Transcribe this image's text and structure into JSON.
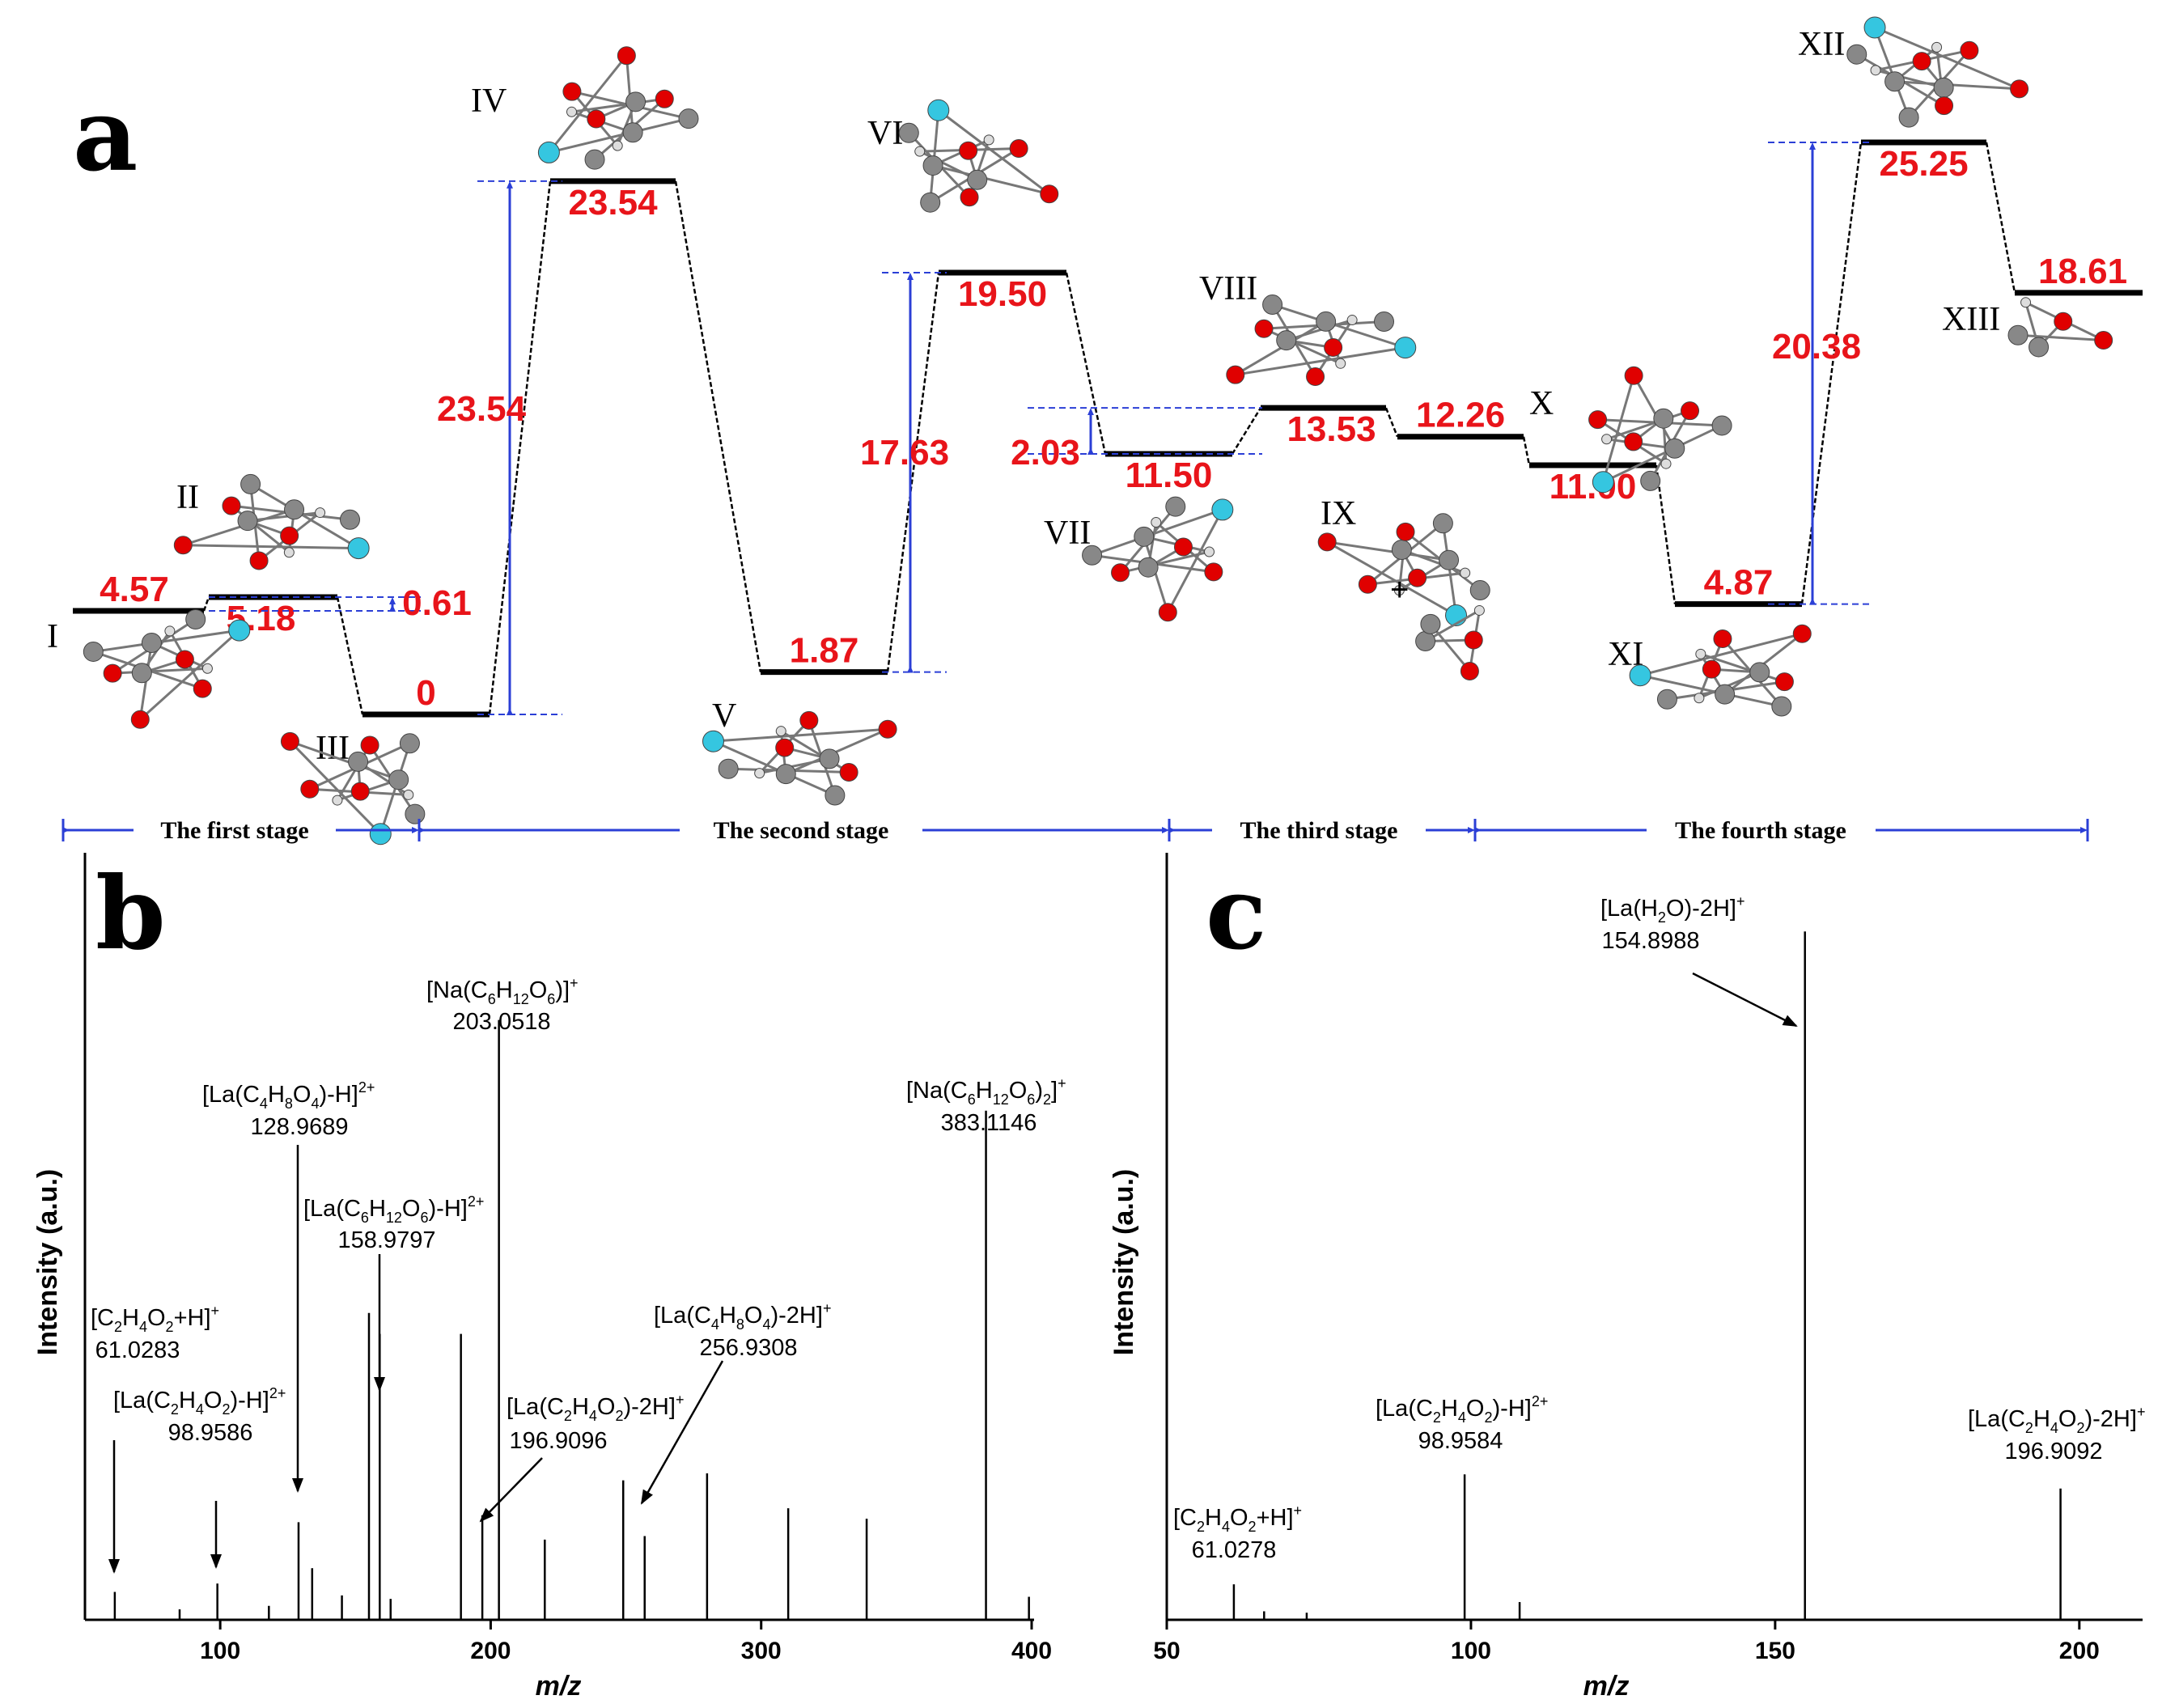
{
  "panels": {
    "a": "a",
    "b": "b",
    "c": "c"
  },
  "energy_profile": {
    "type": "energy-diagram",
    "unit": "kcal/mol",
    "levels": [
      {
        "id": "I",
        "label": "I",
        "energy": 4.57,
        "display": "4.57"
      },
      {
        "id": "II",
        "label": "II",
        "energy": 5.18,
        "display": "5.18"
      },
      {
        "id": "III",
        "label": "III",
        "energy": 0,
        "display": "0"
      },
      {
        "id": "IV",
        "label": "IV",
        "energy": 23.54,
        "display": "23.54"
      },
      {
        "id": "V",
        "label": "V",
        "energy": 1.87,
        "display": "1.87"
      },
      {
        "id": "VI",
        "label": "VI",
        "energy": 19.5,
        "display": "19.50"
      },
      {
        "id": "VII",
        "label": "VII",
        "energy": 11.5,
        "display": "11.50"
      },
      {
        "id": "VIII",
        "label": "VIII",
        "energy": 13.53,
        "display": "13.53"
      },
      {
        "id": "IX",
        "label": "IX",
        "energy": 12.26,
        "display": "12.26"
      },
      {
        "id": "X",
        "label": "X",
        "energy": 11.0,
        "display": "11.00"
      },
      {
        "id": "XI",
        "label": "XI",
        "energy": 4.87,
        "display": "4.87"
      },
      {
        "id": "XII",
        "label": "XII",
        "energy": 25.25,
        "display": "25.25"
      },
      {
        "id": "XIII",
        "label": "XIII",
        "energy": 18.61,
        "display": "18.61"
      }
    ],
    "barriers": [
      {
        "value": 0.61,
        "display": "0.61"
      },
      {
        "value": 23.54,
        "display": "23.54"
      },
      {
        "value": 17.63,
        "display": "17.63"
      },
      {
        "value": 2.03,
        "display": "2.03"
      },
      {
        "value": 20.38,
        "display": "20.38"
      }
    ],
    "plus_sign": "+",
    "stages": [
      "The first stage",
      "The second stage",
      "The third stage",
      "The fourth stage"
    ]
  },
  "chart_data": [
    {
      "type": "bar",
      "panel": "b",
      "title": "",
      "xlabel": "m/z",
      "ylabel": "Intensity (a.u.)",
      "xlim": [
        50,
        400
      ],
      "ylim": [
        0,
        100
      ],
      "xticks": [
        100,
        200,
        300,
        400
      ],
      "peaks": [
        {
          "x": 61.0283,
          "y": 4
        },
        {
          "x": 85,
          "y": 1.5
        },
        {
          "x": 98.9586,
          "y": 5.2
        },
        {
          "x": 118,
          "y": 2
        },
        {
          "x": 128.9689,
          "y": 14
        },
        {
          "x": 134,
          "y": 7.4
        },
        {
          "x": 145,
          "y": 3.5
        },
        {
          "x": 155,
          "y": 44
        },
        {
          "x": 158.9797,
          "y": 41
        },
        {
          "x": 163,
          "y": 3
        },
        {
          "x": 189,
          "y": 41
        },
        {
          "x": 196.9096,
          "y": 15
        },
        {
          "x": 203.0518,
          "y": 86
        },
        {
          "x": 220,
          "y": 11.5
        },
        {
          "x": 249,
          "y": 20
        },
        {
          "x": 256.9308,
          "y": 12
        },
        {
          "x": 280,
          "y": 21
        },
        {
          "x": 310,
          "y": 16
        },
        {
          "x": 339,
          "y": 14.5
        },
        {
          "x": 383.1146,
          "y": 73
        },
        {
          "x": 399,
          "y": 3.3
        }
      ],
      "annotations": [
        {
          "mz": 61.0283,
          "formula": "[C2H4O2+H]+",
          "value": "61.0283"
        },
        {
          "mz": 98.9586,
          "formula": "[La(C2H4O2)-H]2+",
          "value": "98.9586"
        },
        {
          "mz": 128.9689,
          "formula": "[La(C4H8O4)-H]2+",
          "value": "128.9689"
        },
        {
          "mz": 158.9797,
          "formula": "[La(C6H12O6)-H]2+",
          "value": "158.9797"
        },
        {
          "mz": 196.9096,
          "formula": "[La(C2H4O2)-2H]+",
          "value": "196.9096"
        },
        {
          "mz": 203.0518,
          "formula": "[Na(C6H12O6)]+",
          "value": "203.0518"
        },
        {
          "mz": 256.9308,
          "formula": "[La(C4H8O4)-2H]+",
          "value": "256.9308"
        },
        {
          "mz": 383.1146,
          "formula": "[Na(C6H12O6)2]+",
          "value": "383.1146"
        }
      ]
    },
    {
      "type": "bar",
      "panel": "c",
      "title": "",
      "xlabel": "m/z",
      "ylabel": "Intensity (a.u.)",
      "xlim": [
        50,
        210
      ],
      "ylim": [
        0,
        100
      ],
      "xticks": [
        50,
        100,
        150,
        200
      ],
      "peaks": [
        {
          "x": 61.0278,
          "y": 5
        },
        {
          "x": 66,
          "y": 1.2
        },
        {
          "x": 73,
          "y": 1
        },
        {
          "x": 98.9584,
          "y": 20.5
        },
        {
          "x": 108,
          "y": 2.5
        },
        {
          "x": 154.8988,
          "y": 97
        },
        {
          "x": 196.9092,
          "y": 18.5
        }
      ],
      "annotations": [
        {
          "mz": 61.0278,
          "formula": "[C2H4O2+H]+",
          "value": "61.0278"
        },
        {
          "mz": 98.9584,
          "formula": "[La(C2H4O2)-H]2+",
          "value": "98.9584"
        },
        {
          "mz": 154.8988,
          "formula": "[La(H2O)-2H]+",
          "value": "154.8988"
        },
        {
          "mz": 196.9092,
          "formula": "[La(C2H4O2)-2H]+",
          "value": "196.9092"
        }
      ]
    }
  ]
}
